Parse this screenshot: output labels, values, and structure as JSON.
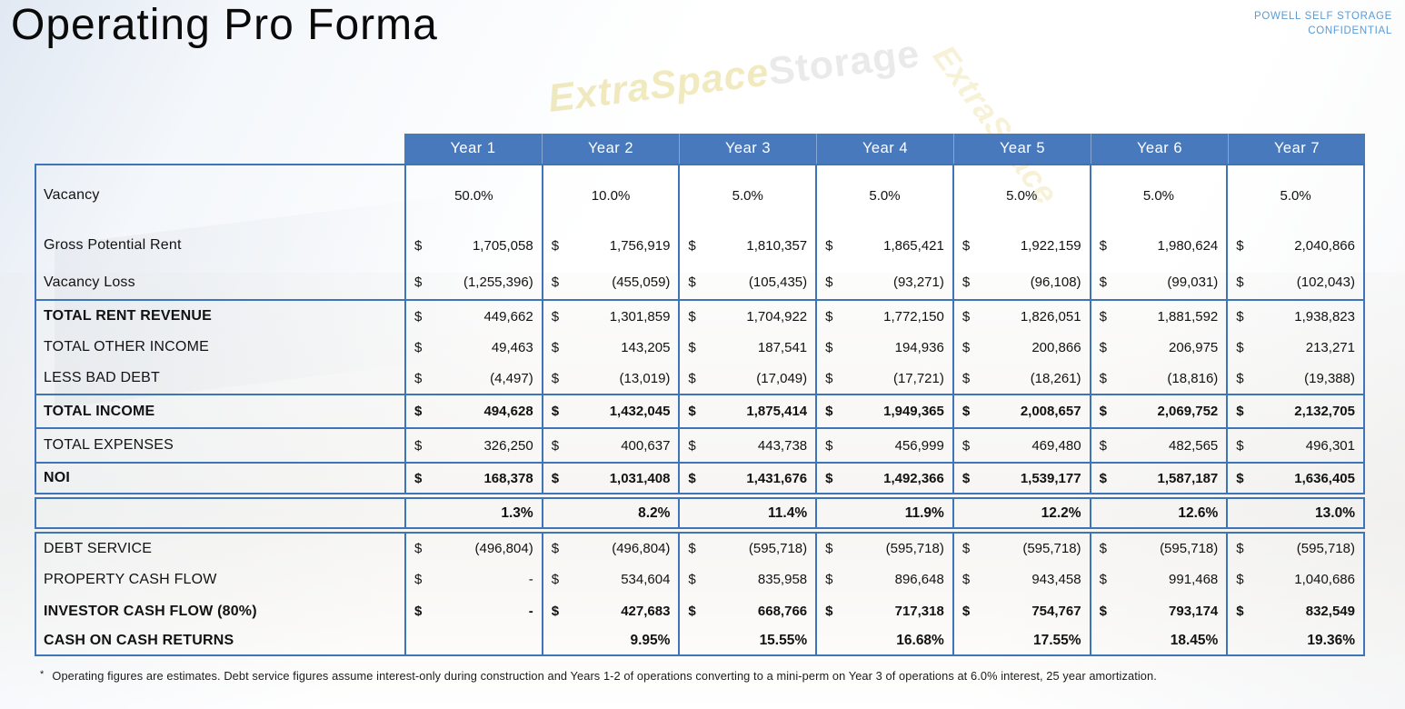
{
  "slide": {
    "title": "Operating Pro Forma"
  },
  "brand": {
    "line1": "POWELL SELF STORAGE",
    "line2": "CONFIDENTIAL"
  },
  "watermark": {
    "part1": "ExtraSpace",
    "part2": "Storage"
  },
  "colors": {
    "header_blue": "#4779BC",
    "border_blue": "#3E74B8",
    "brand_blue": "#5B9BD5",
    "watermark_gold": "#E6D98C",
    "watermark_gray": "#DADADA"
  },
  "table": {
    "years": [
      "Year 1",
      "Year 2",
      "Year 3",
      "Year 4",
      "Year 5",
      "Year 6",
      "Year 7"
    ],
    "groups": [
      {
        "rows": [
          {
            "label": "Vacancy",
            "type": "percent",
            "align": "center",
            "label_bold": false,
            "value_bold": false,
            "values": [
              "50.0%",
              "10.0%",
              "5.0%",
              "5.0%",
              "5.0%",
              "5.0%",
              "5.0%"
            ]
          },
          {
            "label": "Gross Potential Rent",
            "type": "money",
            "label_bold": false,
            "value_bold": false,
            "values": [
              "1,705,058",
              "1,756,919",
              "1,810,357",
              "1,865,421",
              "1,922,159",
              "1,980,624",
              "2,040,866"
            ]
          },
          {
            "label": "Vacancy Loss",
            "type": "money",
            "label_bold": false,
            "value_bold": false,
            "values": [
              "(1,255,396)",
              "(455,059)",
              "(105,435)",
              "(93,271)",
              "(96,108)",
              "(99,031)",
              "(102,043)"
            ]
          }
        ]
      },
      {
        "rows": [
          {
            "label": "TOTAL RENT REVENUE",
            "type": "money",
            "label_bold": true,
            "value_bold": false,
            "values": [
              "449,662",
              "1,301,859",
              "1,704,922",
              "1,772,150",
              "1,826,051",
              "1,881,592",
              "1,938,823"
            ]
          },
          {
            "label": "TOTAL OTHER INCOME",
            "type": "money",
            "label_bold": false,
            "value_bold": false,
            "values": [
              "49,463",
              "143,205",
              "187,541",
              "194,936",
              "200,866",
              "206,975",
              "213,271"
            ]
          },
          {
            "label": "LESS BAD DEBT",
            "type": "money",
            "label_bold": false,
            "value_bold": false,
            "values": [
              "(4,497)",
              "(13,019)",
              "(17,049)",
              "(17,721)",
              "(18,261)",
              "(18,816)",
              "(19,388)"
            ]
          }
        ]
      },
      {
        "rows": [
          {
            "label": "TOTAL INCOME",
            "type": "money",
            "label_bold": true,
            "value_bold": true,
            "values": [
              "494,628",
              "1,432,045",
              "1,875,414",
              "1,949,365",
              "2,008,657",
              "2,069,752",
              "2,132,705"
            ]
          }
        ]
      },
      {
        "rows": [
          {
            "label": "TOTAL EXPENSES",
            "type": "money",
            "label_bold": false,
            "value_bold": false,
            "values": [
              "326,250",
              "400,637",
              "443,738",
              "456,999",
              "469,480",
              "482,565",
              "496,301"
            ]
          }
        ]
      },
      {
        "rows": [
          {
            "label": "NOI",
            "type": "money",
            "label_bold": true,
            "value_bold": true,
            "values": [
              "168,378",
              "1,031,408",
              "1,431,676",
              "1,492,366",
              "1,539,177",
              "1,587,187",
              "1,636,405"
            ]
          }
        ]
      },
      {
        "rows": [
          {
            "label": "",
            "name": "noi-yield-row",
            "type": "percent",
            "align": "right",
            "label_bold": false,
            "value_bold": true,
            "values": [
              "1.3%",
              "8.2%",
              "11.4%",
              "11.9%",
              "12.2%",
              "12.6%",
              "13.0%"
            ]
          }
        ]
      },
      {
        "rows": [
          {
            "label": "DEBT SERVICE",
            "type": "money",
            "label_bold": false,
            "value_bold": false,
            "values": [
              "(496,804)",
              "(496,804)",
              "(595,718)",
              "(595,718)",
              "(595,718)",
              "(595,718)",
              "(595,718)"
            ]
          },
          {
            "label": "PROPERTY CASH FLOW",
            "type": "money",
            "label_bold": false,
            "value_bold": false,
            "values": [
              "-",
              "534,604",
              "835,958",
              "896,648",
              "943,458",
              "991,468",
              "1,040,686"
            ]
          },
          {
            "label": "INVESTOR CASH FLOW (80%)",
            "type": "money",
            "label_bold": true,
            "value_bold": true,
            "values": [
              "-",
              "427,683",
              "668,766",
              "717,318",
              "754,767",
              "793,174",
              "832,549"
            ]
          },
          {
            "label": "CASH ON CASH RETURNS",
            "type": "percent",
            "align": "right",
            "label_bold": true,
            "value_bold": true,
            "values": [
              "",
              "9.95%",
              "15.55%",
              "16.68%",
              "17.55%",
              "18.45%",
              "19.36%"
            ]
          }
        ]
      }
    ]
  },
  "footnote": {
    "marker": "*",
    "text": "Operating figures are estimates.  Debt service figures assume interest-only during construction and Years 1-2 of operations converting to a mini-perm on Year 3 of operations at 6.0% interest, 25 year amortization."
  }
}
